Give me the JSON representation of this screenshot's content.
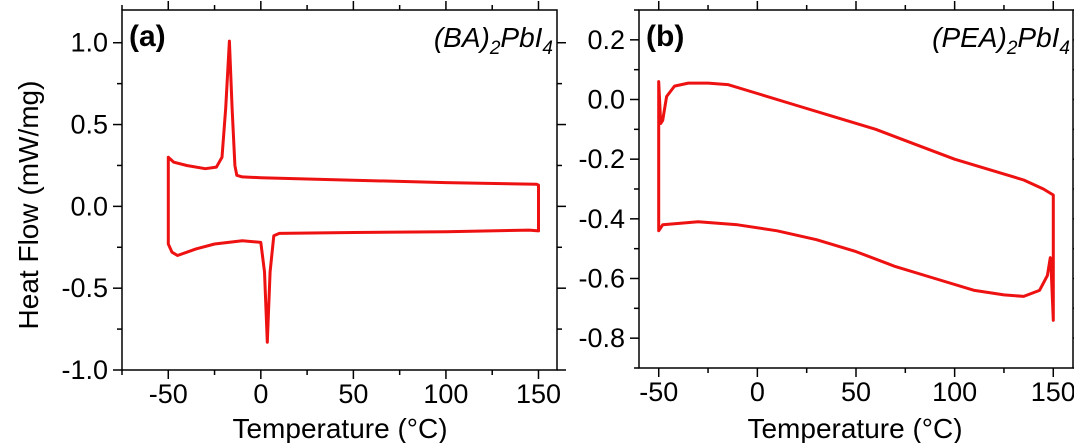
{
  "colors": {
    "trace": "#ee1111",
    "axis": "#000000"
  },
  "chart_data": [
    {
      "type": "line",
      "panel_label": "(a)",
      "compound": {
        "prefix": "(BA)",
        "sub1": "2",
        "middle": "PbI",
        "sub2": "4"
      },
      "xlabel": "Temperature (°C)",
      "ylabel": "Heat Flow (mW/mg)",
      "xlim": [
        -75,
        160
      ],
      "ylim": [
        -1.0,
        1.2
      ],
      "xticks": [
        -50,
        0,
        50,
        100,
        150
      ],
      "xtick_labels": [
        "-50",
        "0",
        "50",
        "100",
        "150"
      ],
      "yticks": [
        -1.0,
        -0.5,
        0.0,
        0.5,
        1.0
      ],
      "ytick_labels": [
        "-1.0",
        "-0.5",
        "0.0",
        "0.5",
        "1.0"
      ],
      "grid": false,
      "series": [
        {
          "values": [
            [
              -50,
              0.3
            ],
            [
              -47,
              0.27
            ],
            [
              -40,
              0.25
            ],
            [
              -30,
              0.23
            ],
            [
              -24,
              0.24
            ],
            [
              -21,
              0.3
            ],
            [
              -19,
              0.6
            ],
            [
              -17,
              1.01
            ],
            [
              -15.5,
              0.6
            ],
            [
              -14,
              0.25
            ],
            [
              -13,
              0.19
            ],
            [
              -10,
              0.18
            ],
            [
              0,
              0.175
            ],
            [
              50,
              0.16
            ],
            [
              100,
              0.145
            ],
            [
              149,
              0.135
            ],
            [
              150,
              0.13
            ],
            [
              150,
              -0.15
            ],
            [
              145,
              -0.145
            ],
            [
              100,
              -0.155
            ],
            [
              50,
              -0.16
            ],
            [
              10,
              -0.165
            ],
            [
              7,
              -0.18
            ],
            [
              5,
              -0.4
            ],
            [
              3.5,
              -0.83
            ],
            [
              2,
              -0.4
            ],
            [
              0,
              -0.22
            ],
            [
              -10,
              -0.21
            ],
            [
              -25,
              -0.23
            ],
            [
              -35,
              -0.26
            ],
            [
              -45,
              -0.3
            ],
            [
              -48,
              -0.28
            ],
            [
              -50,
              -0.23
            ],
            [
              -50,
              0.3
            ]
          ]
        }
      ]
    },
    {
      "type": "line",
      "panel_label": "(b)",
      "compound": {
        "prefix": "(PEA)",
        "sub1": "2",
        "middle": "PbI",
        "sub2": "4"
      },
      "xlabel": "Temperature (°C)",
      "ylabel": "",
      "xlim": [
        -60,
        160
      ],
      "ylim": [
        -0.9,
        0.3
      ],
      "xticks": [
        -50,
        0,
        50,
        100,
        150
      ],
      "xtick_labels": [
        "-50",
        "0",
        "50",
        "100",
        "150"
      ],
      "yticks": [
        -0.8,
        -0.6,
        -0.4,
        -0.2,
        0.0,
        0.2
      ],
      "ytick_labels": [
        "-0.8",
        "-0.6",
        "-0.4",
        "-0.2",
        "0.0",
        "0.2"
      ],
      "grid": false,
      "series": [
        {
          "values": [
            [
              -50,
              0.06
            ],
            [
              -50,
              -0.44
            ],
            [
              -48,
              -0.42
            ],
            [
              -30,
              -0.41
            ],
            [
              -10,
              -0.42
            ],
            [
              10,
              -0.44
            ],
            [
              30,
              -0.47
            ],
            [
              50,
              -0.51
            ],
            [
              70,
              -0.56
            ],
            [
              90,
              -0.6
            ],
            [
              110,
              -0.64
            ],
            [
              125,
              -0.655
            ],
            [
              135,
              -0.66
            ],
            [
              143,
              -0.64
            ],
            [
              147,
              -0.59
            ],
            [
              148.5,
              -0.53
            ],
            [
              149,
              -0.58
            ],
            [
              150,
              -0.74
            ],
            [
              150,
              -0.32
            ],
            [
              145,
              -0.3
            ],
            [
              135,
              -0.27
            ],
            [
              120,
              -0.24
            ],
            [
              100,
              -0.2
            ],
            [
              80,
              -0.15
            ],
            [
              60,
              -0.1
            ],
            [
              40,
              -0.06
            ],
            [
              20,
              -0.02
            ],
            [
              0,
              0.02
            ],
            [
              -15,
              0.05
            ],
            [
              -25,
              0.055
            ],
            [
              -35,
              0.055
            ],
            [
              -42,
              0.045
            ],
            [
              -46,
              0.01
            ],
            [
              -48,
              -0.07
            ],
            [
              -49,
              -0.08
            ],
            [
              -50,
              0.06
            ]
          ]
        }
      ]
    }
  ]
}
